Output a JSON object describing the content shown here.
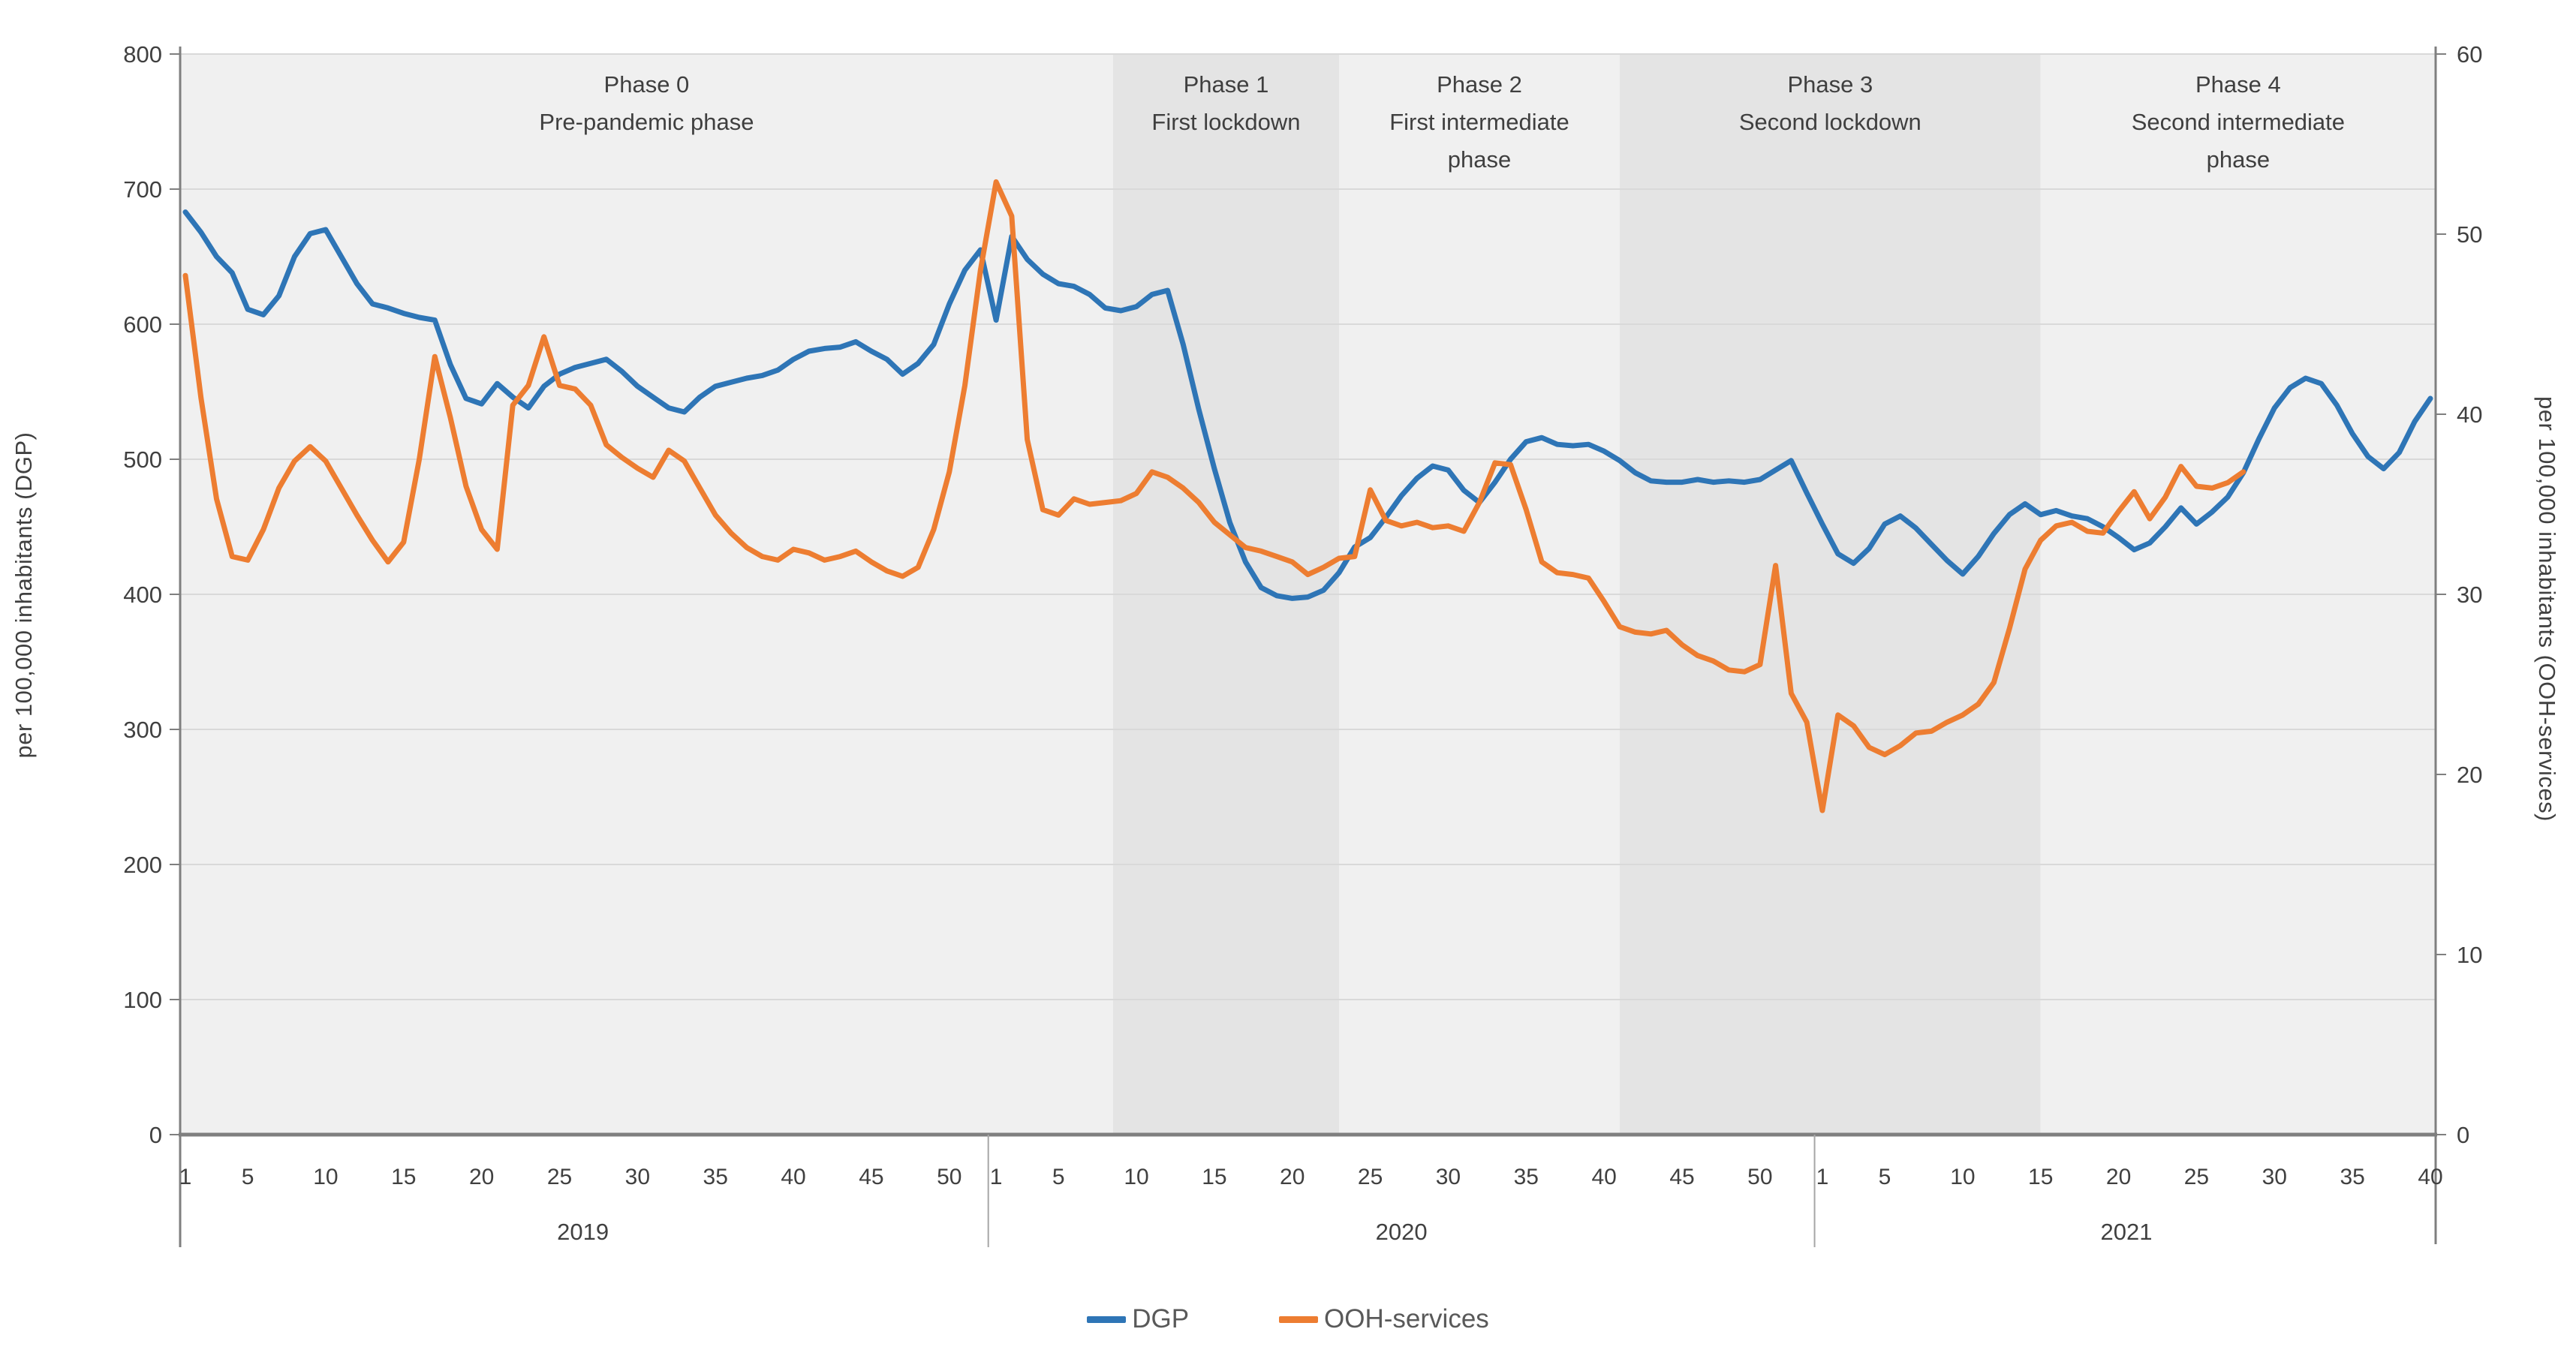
{
  "chart_data": {
    "type": "line",
    "title": "",
    "x_axis": {
      "unit": "calendar week",
      "years": [
        {
          "label": "2019",
          "start_index": 0,
          "weeks": 52,
          "tick_weeks": [
            1,
            5,
            10,
            15,
            20,
            25,
            30,
            35,
            40,
            45,
            50
          ]
        },
        {
          "label": "2020",
          "start_index": 52,
          "weeks": 53,
          "tick_weeks": [
            1,
            5,
            10,
            15,
            20,
            25,
            30,
            35,
            40,
            45,
            50
          ]
        },
        {
          "label": "2021",
          "start_index": 105,
          "weeks": 40,
          "tick_weeks": [
            1,
            5,
            10,
            15,
            20,
            25,
            30,
            35,
            40
          ]
        }
      ],
      "total_points": 145
    },
    "y_axis_left": {
      "title": "per 100,000 inhabitants (DGP)",
      "min": 0,
      "max": 800,
      "tick_step": 100,
      "ticks": [
        0,
        100,
        200,
        300,
        400,
        500,
        600,
        700,
        800
      ]
    },
    "y_axis_right": {
      "title": "per 100,000 inhabitants  (OOH-services)",
      "min": 0,
      "max": 60,
      "tick_step": 10,
      "ticks": [
        0,
        10,
        20,
        30,
        40,
        50,
        60
      ]
    },
    "grid": true,
    "legend_position": "bottom",
    "phases": [
      {
        "title": "Phase 0",
        "subtitle_lines": [
          "Pre-pandemic phase"
        ],
        "start_t": -0.34,
        "end_t": 59.5,
        "shade": "light"
      },
      {
        "title": "Phase 1",
        "subtitle_lines": [
          "First lockdown"
        ],
        "start_t": 59.5,
        "end_t": 74,
        "shade": "dark"
      },
      {
        "title": "Phase 2",
        "subtitle_lines": [
          "First intermediate",
          "phase"
        ],
        "start_t": 74,
        "end_t": 92,
        "shade": "light"
      },
      {
        "title": "Phase 3",
        "subtitle_lines": [
          "Second lockdown"
        ],
        "start_t": 92,
        "end_t": 119,
        "shade": "dark"
      },
      {
        "title": "Phase 4",
        "subtitle_lines": [
          "Second intermediate",
          "phase"
        ],
        "start_t": 119,
        "end_t": 144.34,
        "shade": "light"
      }
    ],
    "series": [
      {
        "name": "DGP",
        "axis": "left",
        "color": "#2E75B6",
        "values": [
          683,
          668,
          650,
          638,
          611,
          607,
          621,
          650,
          667,
          670,
          650,
          630,
          615,
          612,
          608,
          605,
          603,
          570,
          545,
          541,
          556,
          546,
          538,
          554,
          563,
          568,
          571,
          574,
          565,
          554,
          546,
          538,
          535,
          546,
          554,
          557,
          560,
          562,
          566,
          574,
          580,
          582,
          583,
          587,
          580,
          574,
          563,
          571,
          585,
          615,
          640,
          655,
          603,
          665,
          648,
          637,
          630,
          628,
          622,
          612,
          610,
          613,
          622,
          625,
          585,
          537,
          493,
          453,
          424,
          405,
          399,
          397,
          398,
          403,
          416,
          435,
          442,
          457,
          473,
          486,
          495,
          492,
          477,
          468,
          483,
          500,
          513,
          516,
          511,
          510,
          511,
          506,
          499,
          490,
          484,
          483,
          483,
          485,
          483,
          484,
          483,
          485,
          492,
          499,
          475,
          452,
          430,
          423,
          434,
          452,
          458,
          449,
          437,
          425,
          415,
          428,
          445,
          459,
          467,
          459,
          462,
          458,
          456,
          450,
          442,
          433,
          438,
          450,
          464,
          452,
          461,
          472,
          490,
          515,
          538,
          553,
          560,
          556,
          540,
          519,
          502,
          493,
          505,
          528,
          545
        ]
      },
      {
        "name": "OOH-services",
        "axis": "right",
        "color": "#ED7D31",
        "values": [
          47.7,
          40.9,
          35.3,
          32.1,
          31.9,
          33.6,
          35.9,
          37.4,
          38.2,
          37.4,
          35.9,
          34.4,
          33.0,
          31.8,
          32.9,
          37.5,
          43.2,
          39.8,
          36.0,
          33.6,
          32.5,
          40.5,
          41.6,
          44.3,
          41.6,
          41.4,
          40.5,
          38.3,
          37.6,
          37.0,
          36.5,
          38.0,
          37.4,
          35.9,
          34.4,
          33.4,
          32.6,
          32.1,
          31.9,
          32.5,
          32.3,
          31.9,
          32.1,
          32.4,
          31.8,
          31.3,
          31.0,
          31.5,
          33.6,
          36.8,
          41.6,
          48.0,
          52.9,
          51.0,
          38.6,
          34.7,
          34.4,
          35.3,
          35.0,
          35.1,
          35.2,
          35.6,
          36.8,
          36.5,
          35.9,
          35.1,
          34.0,
          33.3,
          32.6,
          32.4,
          32.1,
          31.8,
          31.1,
          31.5,
          32.0,
          32.1,
          35.8,
          34.1,
          33.8,
          34.0,
          33.7,
          33.8,
          33.5,
          35.1,
          37.3,
          37.2,
          34.7,
          31.8,
          31.2,
          31.1,
          30.9,
          29.6,
          28.2,
          27.9,
          27.8,
          28.0,
          27.2,
          26.6,
          26.3,
          25.8,
          25.7,
          26.1,
          31.6,
          24.5,
          22.9,
          18.0,
          23.3,
          22.7,
          21.5,
          21.1,
          21.6,
          22.3,
          22.4,
          22.9,
          23.3,
          23.9,
          25.1,
          28.1,
          31.4,
          33.0,
          33.8,
          34.0,
          33.5,
          33.4,
          34.6,
          35.7,
          34.2,
          35.4,
          37.1,
          36.0,
          35.9,
          36.2,
          36.8,
          null,
          null,
          null,
          null,
          null,
          null,
          null,
          null,
          null,
          null,
          null,
          null
        ]
      }
    ],
    "colors": {
      "band_light": "#F0F0F0",
      "band_dark": "#E4E4E4",
      "gridline": "#D9D9D9",
      "axis_line": "#7F7F7F",
      "separator": "#A6A6A6",
      "tick_text": "#404040",
      "phase_text": "#3F3F3F",
      "legend_text": "#595959"
    }
  },
  "legend": {
    "items": [
      {
        "label": "DGP",
        "color": "#2E75B6"
      },
      {
        "label": "OOH-services",
        "color": "#ED7D31"
      }
    ]
  },
  "axis_titles": {
    "left": "per 100,000 inhabitants (DGP)",
    "right": "per 100,000 inhabitants  (OOH-services)"
  }
}
